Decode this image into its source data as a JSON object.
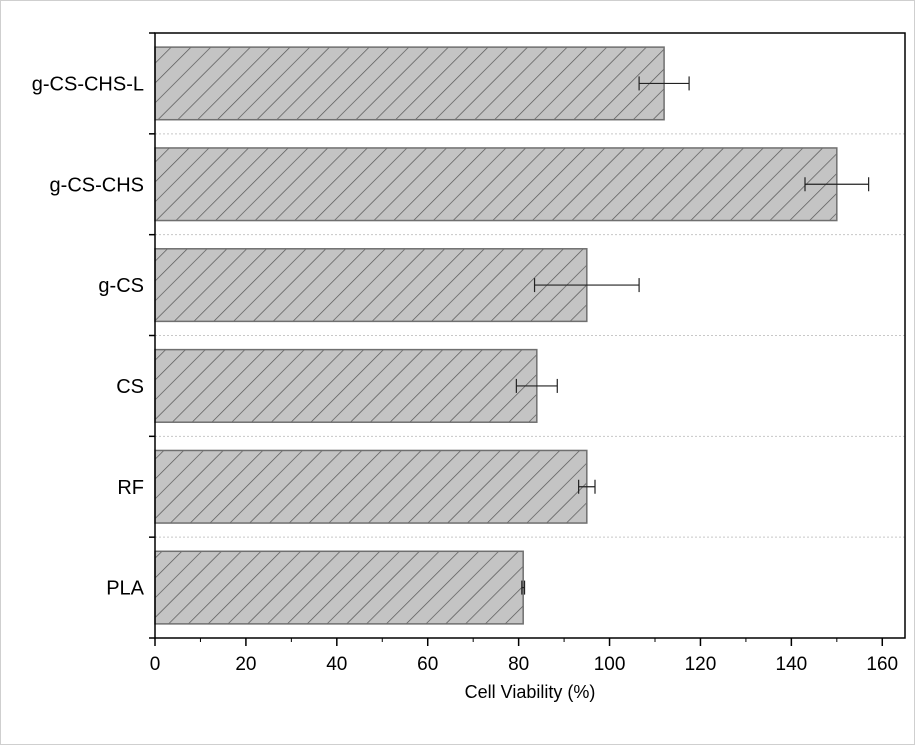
{
  "chart_data": {
    "type": "bar",
    "orientation": "horizontal",
    "categories": [
      "g-CS-CHS-L",
      "g-CS-CHS",
      "g-CS",
      "CS",
      "RF",
      "PLA"
    ],
    "values": [
      112,
      150,
      95,
      84,
      95,
      81
    ],
    "errors": [
      5.5,
      7,
      11.5,
      4.5,
      1.8,
      0.3
    ],
    "xlabel": "Cell Viability (%)",
    "ylabel": "",
    "xlim": [
      0,
      165
    ],
    "xticks": [
      0,
      20,
      40,
      60,
      80,
      100,
      120,
      140,
      160
    ],
    "grid": "horizontal dashed separators between categories",
    "colors": {
      "bar_fill": "#c4c4c4",
      "bar_stroke": "#6f6f6f",
      "hatch": "#555555",
      "error_bar": "#222222",
      "separator": "#c8c8c8"
    }
  }
}
